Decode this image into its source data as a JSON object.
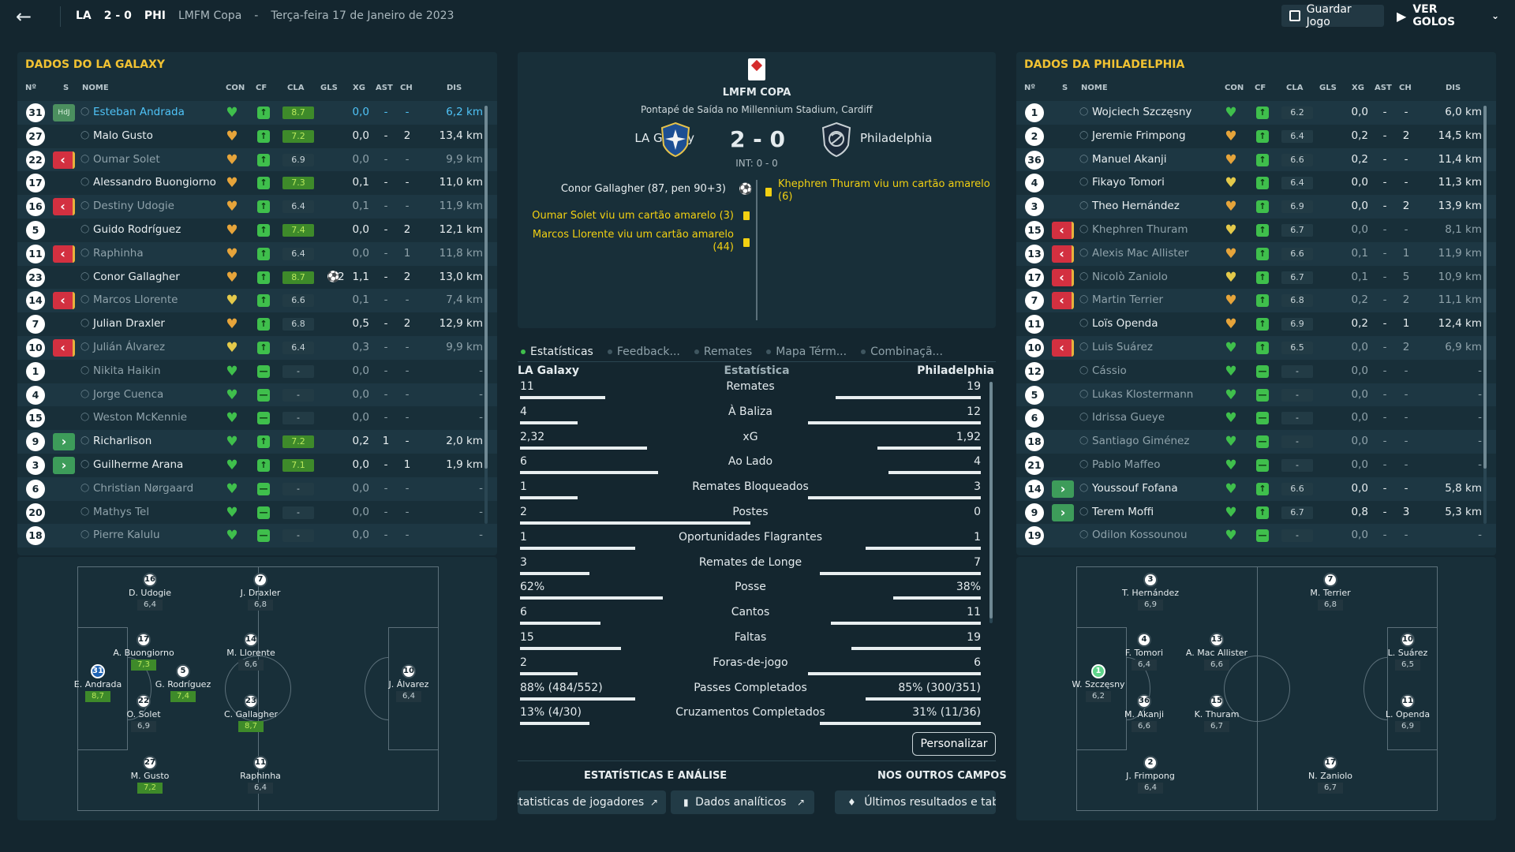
{
  "topbar": {
    "home_abbr": "LA",
    "score": "2 - 0",
    "away_abbr": "PHI",
    "competition": "LMFM Copa",
    "separator": "-",
    "date": "Terça-feira 17 de Janeiro de 2023",
    "save_label": "Guardar Jogo",
    "goals_label": "VER GOLOS"
  },
  "headers": {
    "num": "Nº",
    "sub": "S",
    "name": "NOME",
    "con": "CON",
    "cf": "CF",
    "cla": "CLA",
    "gls": "GLS",
    "xg": "XG",
    "ast": "AST",
    "ch": "CH",
    "dis": "DIS"
  },
  "home": {
    "title": "DADOS DO LA GALAXY",
    "rows": [
      {
        "n": "31",
        "sub": "hdj",
        "sub_label": "HdJ",
        "name": "Esteban Andrada",
        "hl": true,
        "con": "green",
        "cla": "8.7",
        "good": true,
        "gls": "",
        "xg": "0,0",
        "ast": "-",
        "ch": "-",
        "dis": "6,2 km"
      },
      {
        "n": "27",
        "sub": "",
        "name": "Malo Gusto",
        "con": "orange",
        "cla": "7.2",
        "good": true,
        "gls": "",
        "xg": "0,0",
        "ast": "-",
        "ch": "2",
        "dis": "13,4 km"
      },
      {
        "n": "22",
        "sub": "out",
        "name": "Oumar Solet",
        "dim": true,
        "con": "orange",
        "cla": "6.9",
        "gls": "",
        "xg": "0,0",
        "ast": "-",
        "ch": "-",
        "dis": "9,9 km"
      },
      {
        "n": "17",
        "sub": "",
        "name": "Alessandro Buongiorno",
        "con": "orange",
        "cla": "7.3",
        "good": true,
        "gls": "",
        "xg": "0,1",
        "ast": "-",
        "ch": "-",
        "dis": "11,0 km"
      },
      {
        "n": "16",
        "sub": "out",
        "name": "Destiny Udogie",
        "dim": true,
        "con": "orange",
        "cla": "6.4",
        "gls": "",
        "xg": "0,1",
        "ast": "-",
        "ch": "-",
        "dis": "11,9 km"
      },
      {
        "n": "5",
        "sub": "",
        "name": "Guido Rodríguez",
        "con": "orange",
        "cla": "7.4",
        "good": true,
        "gls": "",
        "xg": "0,0",
        "ast": "-",
        "ch": "2",
        "dis": "12,1 km"
      },
      {
        "n": "11",
        "sub": "out",
        "name": "Raphinha",
        "dim": true,
        "con": "orange",
        "cla": "6.4",
        "gls": "",
        "xg": "0,0",
        "ast": "-",
        "ch": "1",
        "dis": "11,8 km"
      },
      {
        "n": "23",
        "sub": "",
        "name": "Conor Gallagher",
        "con": "orange",
        "cla": "8.7",
        "good": true,
        "gls": "2",
        "xg": "1,1",
        "ast": "-",
        "ch": "2",
        "dis": "13,0 km"
      },
      {
        "n": "14",
        "sub": "out",
        "name": "Marcos Llorente",
        "dim": true,
        "con": "yellow",
        "cla": "6.6",
        "gls": "",
        "xg": "0,1",
        "ast": "-",
        "ch": "-",
        "dis": "7,4 km"
      },
      {
        "n": "7",
        "sub": "",
        "name": "Julian Draxler",
        "con": "orange",
        "cla": "6.8",
        "gls": "",
        "xg": "0,5",
        "ast": "-",
        "ch": "2",
        "dis": "12,9 km"
      },
      {
        "n": "10",
        "sub": "out",
        "name": "Julián Álvarez",
        "dim": true,
        "con": "yellow",
        "cla": "6.4",
        "gls": "",
        "xg": "0,3",
        "ast": "-",
        "ch": "-",
        "dis": "9,9 km"
      },
      {
        "n": "1",
        "sub": "",
        "name": "Nikita Haikin",
        "dim": true,
        "con": "green",
        "cla": "-",
        "gls": "",
        "xg": "0,0",
        "ast": "-",
        "ch": "-",
        "dis": "-"
      },
      {
        "n": "4",
        "sub": "",
        "name": "Jorge Cuenca",
        "dim": true,
        "con": "green",
        "cla": "-",
        "gls": "",
        "xg": "0,0",
        "ast": "-",
        "ch": "-",
        "dis": "-"
      },
      {
        "n": "15",
        "sub": "",
        "name": "Weston McKennie",
        "dim": true,
        "con": "green",
        "cla": "-",
        "gls": "",
        "xg": "0,0",
        "ast": "-",
        "ch": "-",
        "dis": "-"
      },
      {
        "n": "9",
        "sub": "in",
        "name": "Richarlison",
        "con": "green",
        "cla": "7.2",
        "good": true,
        "gls": "",
        "xg": "0,2",
        "ast": "1",
        "ch": "-",
        "dis": "2,0 km"
      },
      {
        "n": "3",
        "sub": "in",
        "name": "Guilherme Arana",
        "con": "green",
        "cla": "7.1",
        "good": true,
        "gls": "",
        "xg": "0,0",
        "ast": "-",
        "ch": "1",
        "dis": "1,9 km"
      },
      {
        "n": "6",
        "sub": "",
        "name": "Christian Nørgaard",
        "dim": true,
        "con": "green",
        "cla": "-",
        "gls": "",
        "xg": "0,0",
        "ast": "-",
        "ch": "-",
        "dis": "-"
      },
      {
        "n": "20",
        "sub": "",
        "name": "Mathys Tel",
        "dim": true,
        "con": "green",
        "cla": "-",
        "gls": "",
        "xg": "0,0",
        "ast": "-",
        "ch": "-",
        "dis": "-"
      },
      {
        "n": "18",
        "sub": "",
        "name": "Pierre Kalulu",
        "dim": true,
        "con": "green",
        "cla": "-",
        "gls": "",
        "xg": "0,0",
        "ast": "-",
        "ch": "-",
        "dis": "-"
      }
    ],
    "pitch": [
      {
        "n": "16",
        "name": "D. Udogie",
        "r": "6,4"
      },
      {
        "n": "7",
        "name": "J. Draxler",
        "r": "6,8"
      },
      {
        "n": "17",
        "name": "A. Buongiorno",
        "r": "7,3",
        "good": true
      },
      {
        "n": "14",
        "name": "M. Llorente",
        "r": "6,6"
      },
      {
        "n": "31",
        "name": "E. Andrada",
        "r": "8,7",
        "good": true,
        "gk": true
      },
      {
        "n": "5",
        "name": "G. Rodríguez",
        "r": "7,4",
        "good": true
      },
      {
        "n": "10",
        "name": "J. Álvarez",
        "r": "6,4"
      },
      {
        "n": "22",
        "name": "O. Solet",
        "r": "6,9"
      },
      {
        "n": "23",
        "name": "C. Gallagher",
        "r": "8,7",
        "good": true
      },
      {
        "n": "27",
        "name": "M. Gusto",
        "r": "7,2",
        "good": true
      },
      {
        "n": "11",
        "name": "Raphinha",
        "r": "6,4"
      }
    ]
  },
  "away": {
    "title": "DADOS DA PHILADELPHIA",
    "rows": [
      {
        "n": "1",
        "sub": "",
        "name": "Wojciech Szczęsny",
        "con": "green",
        "cla": "6.2",
        "gls": "",
        "xg": "0,0",
        "ast": "-",
        "ch": "-",
        "dis": "6,0 km"
      },
      {
        "n": "2",
        "sub": "",
        "name": "Jeremie Frimpong",
        "con": "orange",
        "cla": "6.4",
        "gls": "",
        "xg": "0,2",
        "ast": "-",
        "ch": "2",
        "dis": "14,5 km"
      },
      {
        "n": "36",
        "sub": "",
        "name": "Manuel Akanji",
        "con": "orange",
        "cla": "6.6",
        "gls": "",
        "xg": "0,2",
        "ast": "-",
        "ch": "-",
        "dis": "11,4 km"
      },
      {
        "n": "4",
        "sub": "",
        "name": "Fikayo Tomori",
        "con": "yellow",
        "cla": "6.4",
        "gls": "",
        "xg": "0,0",
        "ast": "-",
        "ch": "-",
        "dis": "11,3 km"
      },
      {
        "n": "3",
        "sub": "",
        "name": "Theo Hernández",
        "con": "orange",
        "cla": "6.9",
        "gls": "",
        "xg": "0,0",
        "ast": "-",
        "ch": "2",
        "dis": "13,9 km"
      },
      {
        "n": "15",
        "sub": "out",
        "name": "Khephren Thuram",
        "dim": true,
        "con": "yellow",
        "cla": "6.7",
        "gls": "",
        "xg": "0,0",
        "ast": "-",
        "ch": "-",
        "dis": "8,1 km"
      },
      {
        "n": "13",
        "sub": "out",
        "name": "Alexis Mac Allister",
        "dim": true,
        "con": "orange",
        "cla": "6.6",
        "gls": "",
        "xg": "0,1",
        "ast": "-",
        "ch": "1",
        "dis": "11,9 km"
      },
      {
        "n": "17",
        "sub": "out",
        "name": "Nicolò Zaniolo",
        "dim": true,
        "con": "yellow",
        "cla": "6.7",
        "gls": "",
        "xg": "0,1",
        "ast": "-",
        "ch": "5",
        "dis": "10,9 km"
      },
      {
        "n": "7",
        "sub": "out",
        "name": "Martin Terrier",
        "dim": true,
        "con": "orange",
        "cla": "6.8",
        "gls": "",
        "xg": "0,2",
        "ast": "-",
        "ch": "2",
        "dis": "11,1 km"
      },
      {
        "n": "11",
        "sub": "",
        "name": "Loïs Openda",
        "con": "orange",
        "cla": "6.9",
        "gls": "",
        "xg": "0,2",
        "ast": "-",
        "ch": "1",
        "dis": "12,4 km"
      },
      {
        "n": "10",
        "sub": "out",
        "name": "Luis Suárez",
        "dim": true,
        "con": "green",
        "cla": "6.5",
        "gls": "",
        "xg": "0,0",
        "ast": "-",
        "ch": "2",
        "dis": "6,9 km"
      },
      {
        "n": "12",
        "sub": "",
        "name": "Cássio",
        "dim": true,
        "con": "green",
        "cla": "-",
        "gls": "",
        "xg": "0,0",
        "ast": "-",
        "ch": "-",
        "dis": "-"
      },
      {
        "n": "5",
        "sub": "",
        "name": "Lukas Klostermann",
        "dim": true,
        "con": "green",
        "cla": "-",
        "gls": "",
        "xg": "0,0",
        "ast": "-",
        "ch": "-",
        "dis": "-"
      },
      {
        "n": "6",
        "sub": "",
        "name": "Idrissa Gueye",
        "dim": true,
        "con": "green",
        "cla": "-",
        "gls": "",
        "xg": "0,0",
        "ast": "-",
        "ch": "-",
        "dis": "-"
      },
      {
        "n": "18",
        "sub": "",
        "name": "Santiago Giménez",
        "dim": true,
        "con": "green",
        "cla": "-",
        "gls": "",
        "xg": "0,0",
        "ast": "-",
        "ch": "-",
        "dis": "-"
      },
      {
        "n": "21",
        "sub": "",
        "name": "Pablo Maffeo",
        "dim": true,
        "con": "green",
        "cla": "-",
        "gls": "",
        "xg": "0,0",
        "ast": "-",
        "ch": "-",
        "dis": "-"
      },
      {
        "n": "14",
        "sub": "in",
        "name": "Youssouf Fofana",
        "con": "green",
        "cla": "6.6",
        "gls": "",
        "xg": "0,0",
        "ast": "-",
        "ch": "-",
        "dis": "5,8 km"
      },
      {
        "n": "9",
        "sub": "in",
        "name": "Terem Moffi",
        "con": "green",
        "cla": "6.7",
        "gls": "",
        "xg": "0,8",
        "ast": "-",
        "ch": "3",
        "dis": "5,3 km"
      },
      {
        "n": "19",
        "sub": "",
        "name": "Odilon Kossounou",
        "dim": true,
        "con": "green",
        "cla": "-",
        "gls": "",
        "xg": "0,0",
        "ast": "-",
        "ch": "-",
        "dis": "-"
      }
    ],
    "pitch": [
      {
        "n": "3",
        "name": "T. Hernández",
        "r": "6,9"
      },
      {
        "n": "7",
        "name": "M. Terrier",
        "r": "6,8"
      },
      {
        "n": "4",
        "name": "F. Tomori",
        "r": "6,4"
      },
      {
        "n": "13",
        "name": "A. Mac Allister",
        "r": "6,6"
      },
      {
        "n": "10",
        "name": "L. Suárez",
        "r": "6,5"
      },
      {
        "n": "1",
        "name": "W. Szczęsny",
        "r": "6,2",
        "gk": true
      },
      {
        "n": "36",
        "name": "M. Akanji",
        "r": "6,6"
      },
      {
        "n": "15",
        "name": "K. Thuram",
        "r": "6,7"
      },
      {
        "n": "11",
        "name": "L. Openda",
        "r": "6,9"
      },
      {
        "n": "2",
        "name": "J. Frimpong",
        "r": "6,4"
      },
      {
        "n": "17",
        "name": "N. Zaniolo",
        "r": "6,7"
      }
    ]
  },
  "match": {
    "comp": "LMFM COPA",
    "venue": "Pontapé de Saída no Millennium Stadium, Cardiff",
    "home": "LA Galaxy",
    "away": "Philadelphia",
    "score": "2 - 0",
    "ht": "INT: 0 - 0",
    "home_events": [
      "Conor Gallagher (87, pen 90+3)",
      "Oumar Solet viu um cartão amarelo (3)",
      "Marcos Llorente viu um cartão amarelo (44)"
    ],
    "away_events": [
      "Khephren Thuram viu um cartão amarelo (6)"
    ]
  },
  "tabs": [
    "Estatísticas",
    "Feedback...",
    "Remates",
    "Mapa Térm...",
    "Combinaçã..."
  ],
  "stats": {
    "home_head": "LA Galaxy",
    "mid_head": "Estatística",
    "away_head": "Philadelphia",
    "rows": [
      {
        "label": "Remates",
        "l": "11",
        "r": "19",
        "lp": 0.37,
        "rp": 0.63
      },
      {
        "label": "À Baliza",
        "l": "4",
        "r": "12",
        "lp": 0.25,
        "rp": 0.75
      },
      {
        "label": "xG",
        "l": "2,32",
        "r": "1,92",
        "lp": 0.55,
        "rp": 0.45
      },
      {
        "label": "Ao Lado",
        "l": "6",
        "r": "4",
        "lp": 0.6,
        "rp": 0.4
      },
      {
        "label": "Remates Bloqueados",
        "l": "1",
        "r": "3",
        "lp": 0.25,
        "rp": 0.75
      },
      {
        "label": "Postes",
        "l": "2",
        "r": "0",
        "lp": 1,
        "rp": 0
      },
      {
        "label": "Oportunidades Flagrantes",
        "l": "1",
        "r": "1",
        "lp": 0.5,
        "rp": 0.5
      },
      {
        "label": "Remates de Longe",
        "l": "3",
        "r": "7",
        "lp": 0.3,
        "rp": 0.7
      },
      {
        "label": "Posse",
        "l": "62%",
        "r": "38%",
        "lp": 0.62,
        "rp": 0.38
      },
      {
        "label": "Cantos",
        "l": "6",
        "r": "11",
        "lp": 0.35,
        "rp": 0.65
      },
      {
        "label": "Faltas",
        "l": "15",
        "r": "19",
        "lp": 0.44,
        "rp": 0.56
      },
      {
        "label": "Foras-de-jogo",
        "l": "2",
        "r": "6",
        "lp": 0.25,
        "rp": 0.75
      },
      {
        "label": "Passes Completados",
        "l": "88% (484/552)",
        "r": "85% (300/351)",
        "lp": 0.5,
        "rp": 0.5
      },
      {
        "label": "Cruzamentos Completados",
        "l": "13% (4/30)",
        "r": "31% (11/36)",
        "lp": 0.3,
        "rp": 0.7
      }
    ]
  },
  "customize_label": "Personalizar",
  "analysis_title": "ESTATÍSTICAS E ANÁLISE",
  "others_title": "NOS OUTROS CAMPOS",
  "links": [
    "statisticas de jogadores",
    "Dados analíticos",
    "Últimos resultados e tabe"
  ],
  "colors": {
    "green": "#3fbf4c",
    "orange": "#e6a43a",
    "yellow": "#e4c94a",
    "accent": "#f1c232",
    "link": "#4fc3f7"
  },
  "icons": [
    "back-arrow-icon",
    "save-icon",
    "play-icon",
    "chevron-down-icon",
    "person-icon",
    "heart-icon",
    "ball-icon",
    "yellow-card-icon",
    "external-link-icon",
    "bar-chart-icon",
    "trophy-icon"
  ]
}
